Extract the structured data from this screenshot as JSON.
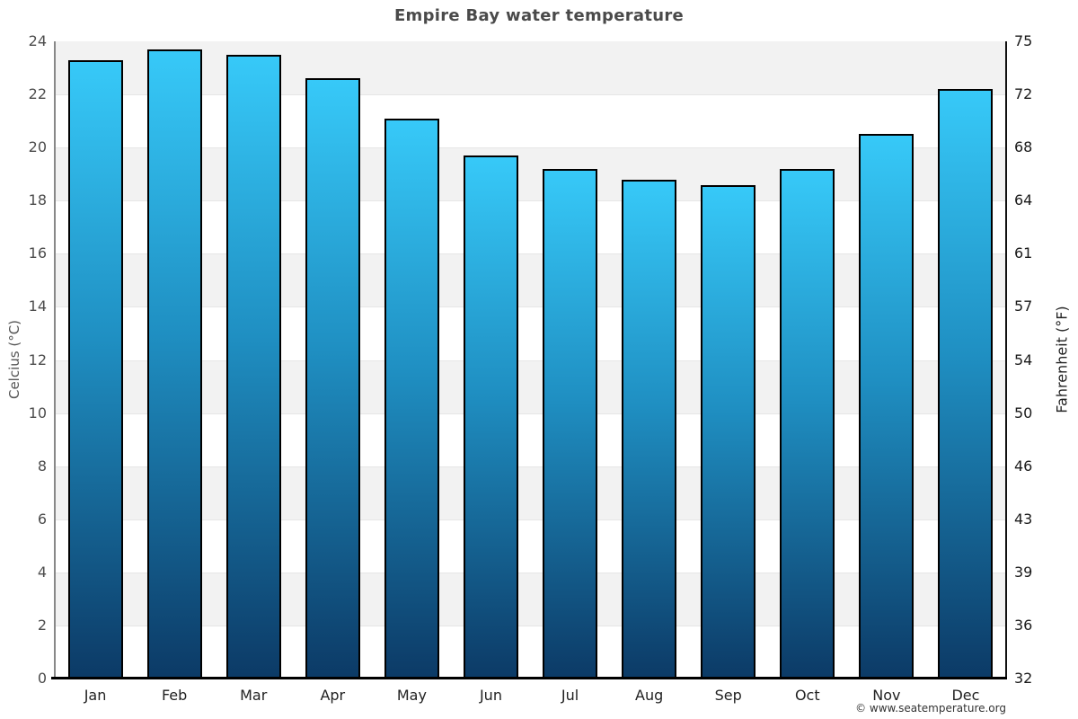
{
  "page": {
    "copyright": "© www.seatemperature.org"
  },
  "chart_data": {
    "type": "bar",
    "title": "Empire Bay water temperature",
    "categories": [
      "Jan",
      "Feb",
      "Mar",
      "Apr",
      "May",
      "Jun",
      "Jul",
      "Aug",
      "Sep",
      "Oct",
      "Nov",
      "Dec"
    ],
    "values": [
      23.3,
      23.7,
      23.5,
      22.6,
      21.1,
      19.7,
      19.2,
      18.8,
      18.6,
      19.2,
      20.5,
      22.2
    ],
    "unit": "°C",
    "xlabel": "",
    "ylabel_left": "Celcius (°C)",
    "ylabel_right": "Fahrenheit (°F)",
    "ylim": [
      0,
      24
    ],
    "yticks_left": [
      24,
      22,
      20,
      18,
      16,
      14,
      12,
      10,
      8,
      6,
      4,
      2,
      0
    ],
    "yticks_right": [
      "75",
      "72",
      "68",
      "64",
      "61",
      "57",
      "54",
      "50",
      "46",
      "43",
      "39",
      "36",
      "32"
    ],
    "legend": "none",
    "grid": "alternating-horizontal-bands",
    "colors": {
      "band_gray": "#f2f2f2",
      "band_white": "#ffffff",
      "gridline": "#e6e6e6",
      "bar_top": "#37c9f8",
      "bar_mid": "#1f8fc2",
      "bar_bottom": "#0c3a66",
      "bar_border": "#000000",
      "axis_left": "#888888",
      "axis_right": "#111111",
      "axis_bottom": "#000000",
      "title_text": "#4a4a4a"
    }
  }
}
